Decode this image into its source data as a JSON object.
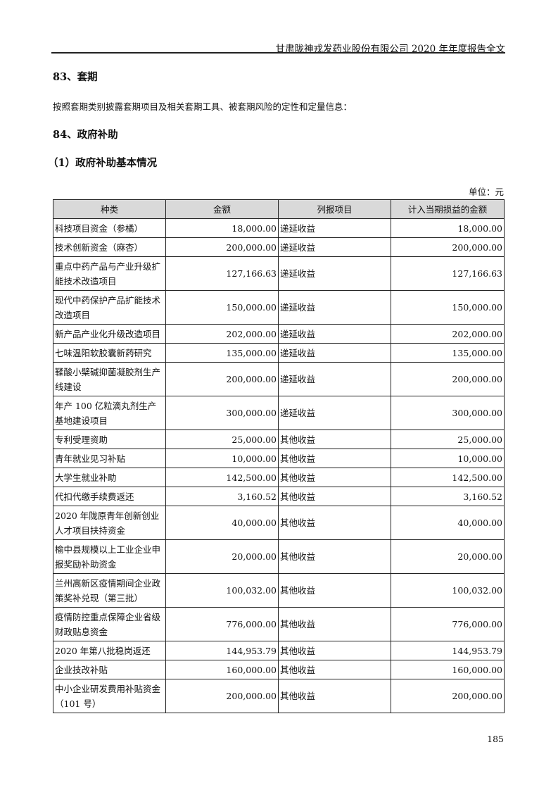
{
  "running_header": "甘肃陇神戎发药业股份有限公司 2020 年年度报告全文",
  "section83": {
    "title": "83、套期",
    "text": "按照套期类别披露套期项目及相关套期工具、被套期风险的定性和定量信息："
  },
  "section84": {
    "title": "84、政府补助",
    "subtitle": "（1）政府补助基本情况"
  },
  "unit": "单位：元",
  "table": {
    "headers": [
      "种类",
      "金额",
      "列报项目",
      "计入当期损益的金额"
    ],
    "rows": [
      [
        "科技项目资金（参橘）",
        "18,000.00",
        "递延收益",
        "18,000.00"
      ],
      [
        "技术创新资金（麻杏）",
        "200,000.00",
        "递延收益",
        "200,000.00"
      ],
      [
        "重点中药产品与产业升级扩能技术改造项目",
        "127,166.63",
        "递延收益",
        "127,166.63"
      ],
      [
        "现代中药保护产品扩能技术改造项目",
        "150,000.00",
        "递延收益",
        "150,000.00"
      ],
      [
        "新产品产业化升级改造项目",
        "202,000.00",
        "递延收益",
        "202,000.00"
      ],
      [
        "七味温阳软胶囊新药研究",
        "135,000.00",
        "递延收益",
        "135,000.00"
      ],
      [
        "鞣酸小檗碱抑菌凝胶剂生产线建设",
        "200,000.00",
        "递延收益",
        "200,000.00"
      ],
      [
        "年产 100 亿粒滴丸剂生产基地建设项目",
        "300,000.00",
        "递延收益",
        "300,000.00"
      ],
      [
        "专利受理资助",
        "25,000.00",
        "其他收益",
        "25,000.00"
      ],
      [
        "青年就业见习补贴",
        "10,000.00",
        "其他收益",
        "10,000.00"
      ],
      [
        "大学生就业补助",
        "142,500.00",
        "其他收益",
        "142,500.00"
      ],
      [
        "代扣代缴手续费返还",
        "3,160.52",
        "其他收益",
        "3,160.52"
      ],
      [
        "2020 年陇原青年创新创业人才项目扶持资金",
        "40,000.00",
        "其他收益",
        "40,000.00"
      ],
      [
        "榆中县规模以上工业企业申报奖励补助资金",
        "20,000.00",
        "其他收益",
        "20,000.00"
      ],
      [
        "兰州高新区疫情期间企业政策奖补兑现（第三批）",
        "100,032.00",
        "其他收益",
        "100,032.00"
      ],
      [
        "疫情防控重点保障企业省级财政贴息资金",
        "776,000.00",
        "其他收益",
        "776,000.00"
      ],
      [
        "2020 年第八批稳岗返还",
        "144,953.79",
        "其他收益",
        "144,953.79"
      ],
      [
        "企业技改补贴",
        "160,000.00",
        "其他收益",
        "160,000.00"
      ],
      [
        "中小企业研发费用补贴资金（101 号）",
        "200,000.00",
        "其他收益",
        "200,000.00"
      ]
    ]
  },
  "page_number": "185"
}
